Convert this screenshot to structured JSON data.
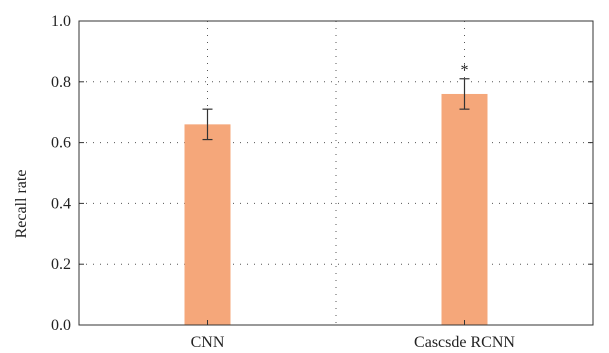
{
  "chart_data": {
    "type": "bar",
    "categories": [
      "CNN",
      "Cascsde RCNN"
    ],
    "values": [
      0.66,
      0.76
    ],
    "error": [
      0.05,
      0.05
    ],
    "annotations": [
      {
        "category": "Cascsde RCNN",
        "text": "*"
      }
    ],
    "xlabel": "",
    "ylabel": "Recall rate",
    "ylim": [
      0,
      1.0
    ],
    "yticks": [
      0.0,
      0.2,
      0.4,
      0.6,
      0.8,
      1.0
    ],
    "ytick_labels": [
      "0.0",
      "0.2",
      "0.4",
      "0.6",
      "0.8",
      "1.0"
    ],
    "grid": true,
    "bar_color": "#f5a77a",
    "axis_color": "#333333"
  }
}
